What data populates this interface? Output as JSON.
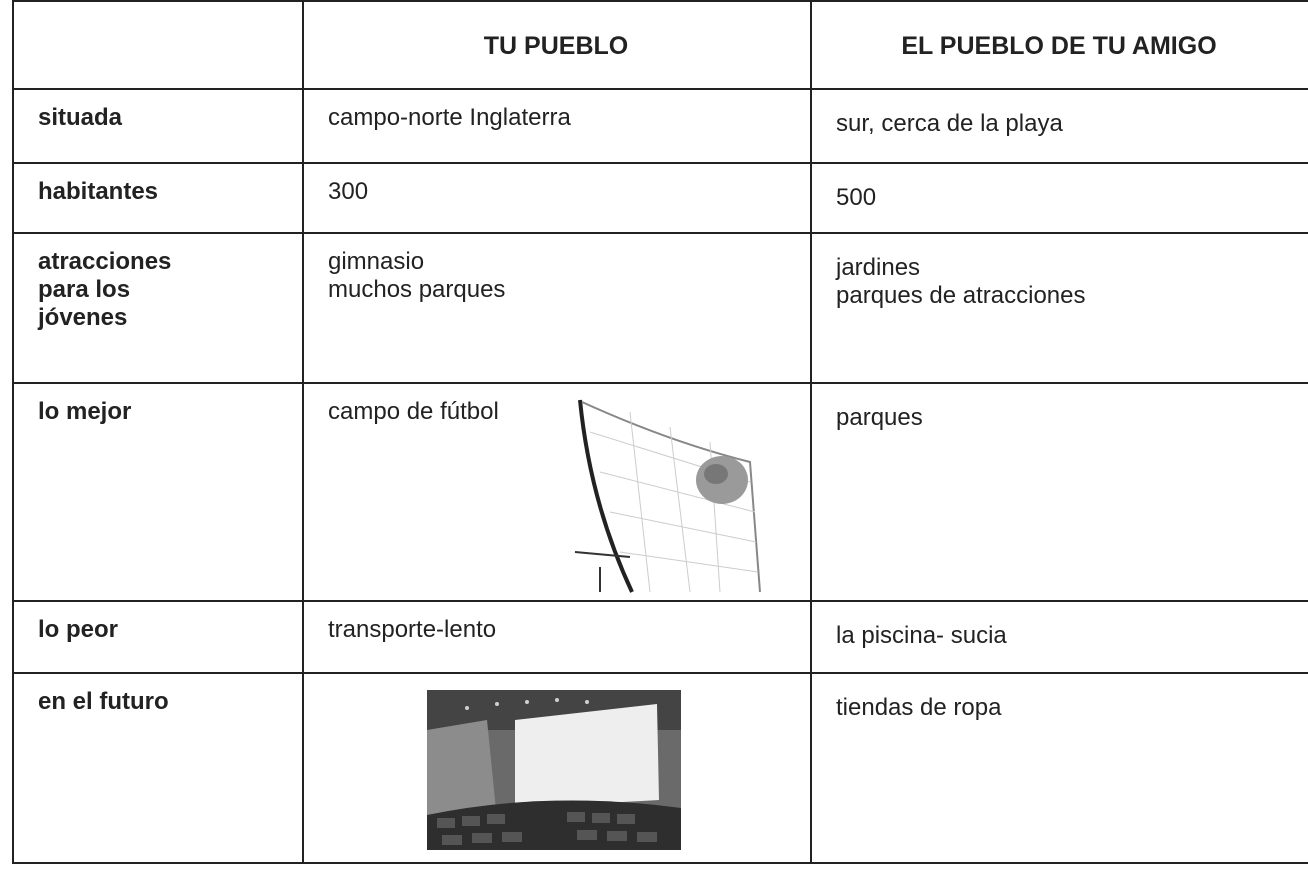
{
  "table": {
    "header": [
      "TU PUEBLO",
      "EL PUEBLO DE TU AMIGO"
    ],
    "rows": [
      {
        "label": [
          "situada"
        ],
        "tu": [
          "campo-norte Inglaterra"
        ],
        "amigo": [
          "sur, cerca de la playa"
        ]
      },
      {
        "label": [
          "habitantes"
        ],
        "tu": [
          "300"
        ],
        "amigo": [
          "500"
        ]
      },
      {
        "label": [
          "atracciones",
          "para los",
          "jóvenes"
        ],
        "tu": [
          "gimnasio",
          "muchos parques"
        ],
        "amigo": [
          "jardines",
          "parques de atracciones"
        ]
      },
      {
        "label": [
          "lo mejor"
        ],
        "tu": [
          "campo de fútbol"
        ],
        "amigo": [
          "parques"
        ]
      },
      {
        "label": [
          "lo peor"
        ],
        "tu": [
          "transporte-lento"
        ],
        "amigo": [
          "la piscina- sucia"
        ]
      },
      {
        "label": [
          "en el futuro"
        ],
        "amigo": [
          "tiendas de ropa"
        ]
      }
    ]
  }
}
